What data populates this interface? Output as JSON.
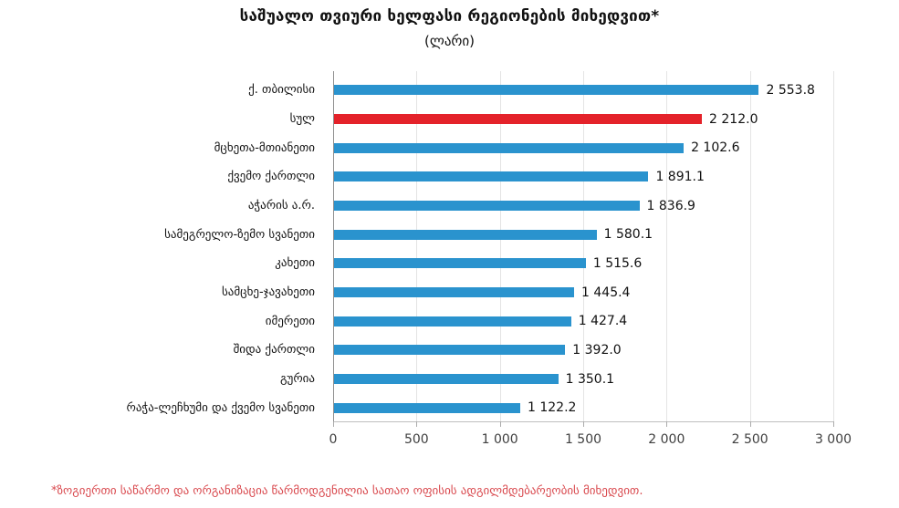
{
  "chart_data": {
    "type": "bar",
    "orientation": "horizontal",
    "title": "საშუალო თვიური ხელფასი რეგიონების მიხედვით*",
    "subtitle": "(ლარი)",
    "categories": [
      "ქ. თბილისი",
      "სულ",
      "მცხეთა-მთიანეთი",
      "ქვემო ქართლი",
      "აჭარის ა.რ.",
      "სამეგრელო-ზემო სვანეთი",
      "კახეთი",
      "სამცხე-ჯავახეთი",
      "იმერეთი",
      "შიდა ქართლი",
      "გურია",
      "რაჭა-ლეჩხუმი და ქვემო სვანეთი"
    ],
    "values": [
      2553.8,
      2212.0,
      2102.6,
      1891.1,
      1836.9,
      1580.1,
      1515.6,
      1445.4,
      1427.4,
      1392.0,
      1350.1,
      1122.2
    ],
    "value_labels": [
      "2 553.8",
      "2 212.0",
      "2 102.6",
      "1 891.1",
      "1 836.9",
      "1 580.1",
      "1 515.6",
      "1 445.4",
      "1 427.4",
      "1 392.0",
      "1 350.1",
      "1 122.2"
    ],
    "highlight_index": 1,
    "bar_color": "#2a93ce",
    "highlight_color": "#e4222a",
    "xlim": [
      0,
      3000
    ],
    "x_ticks": [
      0,
      500,
      1000,
      1500,
      2000,
      2500,
      3000
    ],
    "x_tick_labels": [
      "0",
      "500",
      "1 000",
      "1 500",
      "2 000",
      "2 500",
      "3 000"
    ],
    "grid": "vertical",
    "legend": "none"
  },
  "footnote": {
    "text": "*ზოგიერთი საწარმო და ორგანიზაცია წარმოდგენილია სათაო ოფისის ადგილმდებარეობის მიხედვით.",
    "color": "#d9494e"
  }
}
